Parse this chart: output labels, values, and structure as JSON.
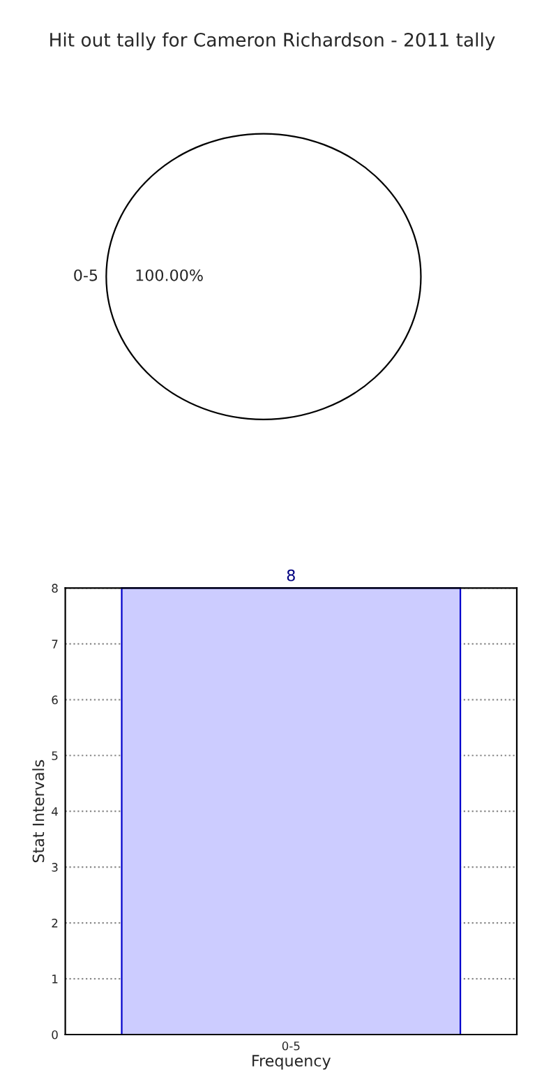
{
  "chart_data": [
    {
      "type": "pie",
      "title": "Hit out tally for Cameron Richardson - 2011 tally",
      "categories": [
        "0-5"
      ],
      "values": [
        100
      ],
      "colors": [
        "#ffffff"
      ],
      "value_labels": [
        "100.00%"
      ]
    },
    {
      "type": "bar",
      "categories": [
        "0-5"
      ],
      "values": [
        8
      ],
      "color": "#ccccff",
      "xlabel": "Frequency",
      "ylabel": "Stat Intervals",
      "ylim": [
        0,
        8
      ],
      "yticks": [
        0,
        1,
        2,
        3,
        4,
        5,
        6,
        7,
        8
      ],
      "grid": true,
      "data_labels": true
    }
  ]
}
